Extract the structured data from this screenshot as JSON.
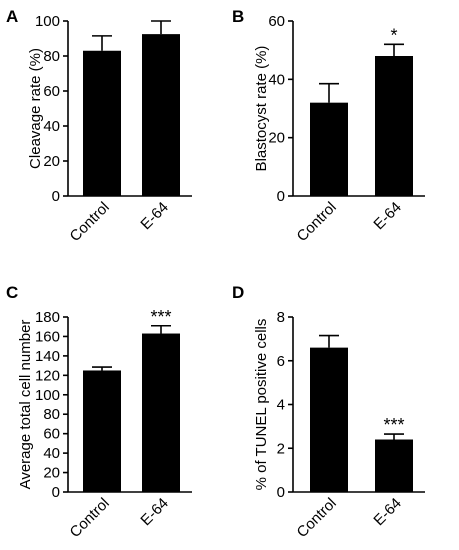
{
  "chart_data": [
    {
      "type": "bar",
      "panel": "A",
      "categories": [
        "Control",
        "E-64"
      ],
      "values": [
        83,
        92.5
      ],
      "errors": [
        8.5,
        7.5
      ],
      "significance": [
        "",
        ""
      ],
      "ylabel": "Cleavage rate (%)",
      "ylim": [
        0,
        100
      ],
      "yticks": [
        0,
        20,
        40,
        60,
        80,
        100
      ]
    },
    {
      "type": "bar",
      "panel": "B",
      "categories": [
        "Control",
        "E-64"
      ],
      "values": [
        32,
        48
      ],
      "errors": [
        6.5,
        4
      ],
      "significance": [
        "",
        "*"
      ],
      "ylabel": "Blastocyst rate (%)",
      "ylim": [
        0,
        60
      ],
      "yticks": [
        0,
        20,
        40,
        60
      ]
    },
    {
      "type": "bar",
      "panel": "C",
      "categories": [
        "Control",
        "E-64"
      ],
      "values": [
        125,
        163
      ],
      "errors": [
        3.5,
        8
      ],
      "significance": [
        "",
        "***"
      ],
      "ylabel": "Average total cell number",
      "ylim": [
        0,
        180
      ],
      "yticks": [
        0,
        20,
        40,
        60,
        80,
        100,
        120,
        140,
        160,
        180
      ]
    },
    {
      "type": "bar",
      "panel": "D",
      "categories": [
        "Control",
        "E-64"
      ],
      "values": [
        6.6,
        2.4
      ],
      "errors": [
        0.55,
        0.25
      ],
      "significance": [
        "",
        "***"
      ],
      "ylabel": "% of TUNEL positive cells",
      "ylim": [
        0,
        8
      ],
      "yticks": [
        0,
        2,
        4,
        6,
        8
      ]
    }
  ]
}
